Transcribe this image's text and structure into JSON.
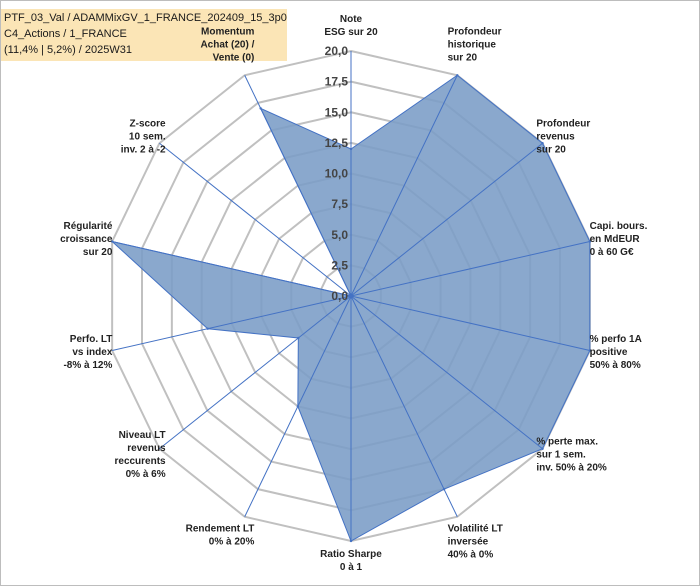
{
  "header": {
    "line1": "PTF_03_Val / ADAMMixGV_1_FRANCE_202409_15_3p0",
    "line2": "C4_Actions / 1_FRANCE",
    "line3": "(11,4% | 5,2%) / 2025W31"
  },
  "colors": {
    "fill": "#7a9cc6",
    "stroke": "#4472c4",
    "grid": "#c0c0c0",
    "header_bg": "#fbe5b6"
  },
  "chart_data": {
    "type": "radar",
    "rmin": 0,
    "rmax": 20,
    "tick_labels": [
      "0,0",
      "2,5",
      "5,0",
      "7,5",
      "10,0",
      "12,5",
      "15,0",
      "17,5",
      "20,0"
    ],
    "axes": [
      [
        "Note",
        "ESG sur 20"
      ],
      [
        "Profondeur",
        "historique",
        "sur 20"
      ],
      [
        "Profondeur",
        "revenus",
        "sur 20"
      ],
      [
        "Capi. bours.",
        "en MdEUR",
        "0 à 60 G€"
      ],
      [
        "% perfo 1A",
        "positive",
        "50% à 80%"
      ],
      [
        "% perte max.",
        "sur 1 sem.",
        "inv. 50% à 20%"
      ],
      [
        "Volatilité LT",
        "inversée",
        "40% à 0%"
      ],
      [
        "Ratio Sharpe",
        "0 à 1"
      ],
      [
        "Rendement LT",
        "0% à 20%"
      ],
      [
        "Niveau LT",
        "revenus",
        "reccurents",
        "0% à 6%"
      ],
      [
        "Perfo. LT",
        "vs index",
        "-8% à 12%"
      ],
      [
        "Régularité",
        "croissance",
        "sur 20"
      ],
      [
        "Z-score",
        "10 sem.",
        "inv. 2 à -2"
      ],
      [
        "Momentum",
        "Achat (20) /",
        "Vente (0)"
      ]
    ],
    "series": [
      {
        "values": [
          12,
          20,
          20,
          20,
          20,
          20,
          17.5,
          20,
          10,
          5.5,
          12,
          20,
          0,
          17
        ]
      }
    ],
    "grid": true,
    "legend": "none"
  }
}
